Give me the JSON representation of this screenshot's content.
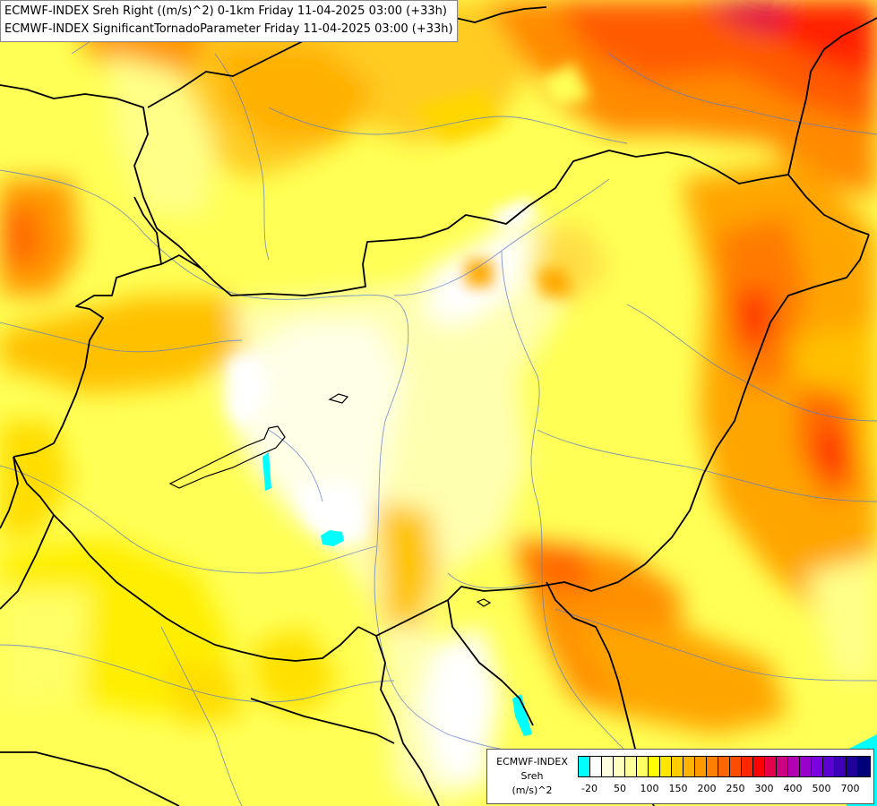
{
  "title_lines": [
    "ECMWF-INDEX Sreh Right ((m/s)^2) 0-1km Friday 11-04-2025 03:00 (+33h)",
    "ECMWF-INDEX SignificantTornadoParameter Friday 11-04-2025 03:00 (+33h)"
  ],
  "legend": {
    "title_lines": [
      "ECMWF-INDEX",
      "Sreh",
      "(m/s)^2"
    ],
    "colors": [
      "#00ffff",
      "#ffffff",
      "#ffffe0",
      "#ffffc0",
      "#ffff99",
      "#ffff66",
      "#ffff00",
      "#ffe600",
      "#ffcc00",
      "#ffb300",
      "#ff9900",
      "#ff8000",
      "#ff6600",
      "#ff4d00",
      "#ff2600",
      "#ff0000",
      "#e6004c",
      "#cc0080",
      "#b300b3",
      "#9900cc",
      "#7a00e0",
      "#5c00d4",
      "#3d00b8",
      "#1f0099",
      "#00007a"
    ],
    "tick_labels": [
      "-20",
      "50",
      "100",
      "150",
      "200",
      "250",
      "300",
      "400",
      "500",
      "700"
    ]
  }
}
